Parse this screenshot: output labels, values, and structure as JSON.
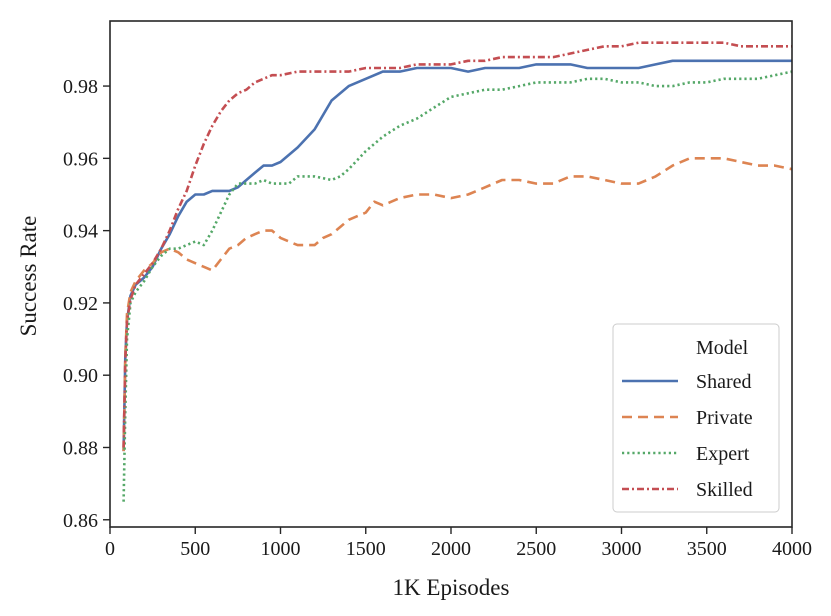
{
  "chart_data": {
    "type": "line",
    "title": "",
    "xlabel": "1K Episodes",
    "ylabel": "Success Rate",
    "xlim": [
      0,
      4000
    ],
    "ylim": [
      0.858,
      0.998
    ],
    "xticks": [
      0,
      500,
      1000,
      1500,
      2000,
      2500,
      3000,
      3500,
      4000
    ],
    "xtick_labels": [
      "0",
      "500",
      "1000",
      "1500",
      "2000",
      "2500",
      "3000",
      "3500",
      "4000"
    ],
    "yticks": [
      0.86,
      0.88,
      0.9,
      0.92,
      0.94,
      0.96,
      0.98
    ],
    "ytick_labels": [
      "0.86",
      "0.88",
      "0.90",
      "0.92",
      "0.94",
      "0.96",
      "0.98"
    ],
    "grid": false,
    "legend": {
      "title": "Model",
      "position": "lower-right"
    },
    "series": [
      {
        "name": "Shared",
        "color": "#4c72b0",
        "style": "solid",
        "points": [
          [
            80,
            0.879
          ],
          [
            90,
            0.905
          ],
          [
            100,
            0.915
          ],
          [
            120,
            0.922
          ],
          [
            150,
            0.925
          ],
          [
            200,
            0.927
          ],
          [
            250,
            0.93
          ],
          [
            300,
            0.935
          ],
          [
            350,
            0.939
          ],
          [
            400,
            0.944
          ],
          [
            450,
            0.948
          ],
          [
            500,
            0.95
          ],
          [
            550,
            0.95
          ],
          [
            600,
            0.951
          ],
          [
            650,
            0.951
          ],
          [
            700,
            0.951
          ],
          [
            750,
            0.952
          ],
          [
            800,
            0.954
          ],
          [
            850,
            0.956
          ],
          [
            900,
            0.958
          ],
          [
            950,
            0.958
          ],
          [
            1000,
            0.959
          ],
          [
            1100,
            0.963
          ],
          [
            1200,
            0.968
          ],
          [
            1300,
            0.976
          ],
          [
            1400,
            0.98
          ],
          [
            1500,
            0.982
          ],
          [
            1600,
            0.984
          ],
          [
            1700,
            0.984
          ],
          [
            1800,
            0.985
          ],
          [
            1900,
            0.985
          ],
          [
            2000,
            0.985
          ],
          [
            2100,
            0.984
          ],
          [
            2200,
            0.985
          ],
          [
            2300,
            0.985
          ],
          [
            2400,
            0.985
          ],
          [
            2500,
            0.986
          ],
          [
            2600,
            0.986
          ],
          [
            2700,
            0.986
          ],
          [
            2800,
            0.985
          ],
          [
            2900,
            0.985
          ],
          [
            3000,
            0.985
          ],
          [
            3100,
            0.985
          ],
          [
            3200,
            0.986
          ],
          [
            3300,
            0.987
          ],
          [
            3400,
            0.987
          ],
          [
            3500,
            0.987
          ],
          [
            3600,
            0.987
          ],
          [
            3700,
            0.987
          ],
          [
            3800,
            0.987
          ],
          [
            3900,
            0.987
          ],
          [
            4000,
            0.987
          ]
        ]
      },
      {
        "name": "Private",
        "color": "#dd8452",
        "style": "dashed",
        "points": [
          [
            80,
            0.879
          ],
          [
            90,
            0.905
          ],
          [
            100,
            0.917
          ],
          [
            120,
            0.923
          ],
          [
            150,
            0.926
          ],
          [
            200,
            0.929
          ],
          [
            250,
            0.931
          ],
          [
            300,
            0.934
          ],
          [
            350,
            0.935
          ],
          [
            400,
            0.934
          ],
          [
            450,
            0.932
          ],
          [
            500,
            0.931
          ],
          [
            550,
            0.93
          ],
          [
            600,
            0.929
          ],
          [
            650,
            0.932
          ],
          [
            700,
            0.935
          ],
          [
            750,
            0.936
          ],
          [
            800,
            0.938
          ],
          [
            850,
            0.939
          ],
          [
            900,
            0.94
          ],
          [
            950,
            0.94
          ],
          [
            1000,
            0.938
          ],
          [
            1050,
            0.937
          ],
          [
            1100,
            0.936
          ],
          [
            1150,
            0.936
          ],
          [
            1200,
            0.936
          ],
          [
            1250,
            0.938
          ],
          [
            1300,
            0.939
          ],
          [
            1350,
            0.941
          ],
          [
            1400,
            0.943
          ],
          [
            1450,
            0.944
          ],
          [
            1500,
            0.945
          ],
          [
            1550,
            0.948
          ],
          [
            1600,
            0.947
          ],
          [
            1650,
            0.948
          ],
          [
            1700,
            0.949
          ],
          [
            1800,
            0.95
          ],
          [
            1900,
            0.95
          ],
          [
            2000,
            0.949
          ],
          [
            2100,
            0.95
          ],
          [
            2200,
            0.952
          ],
          [
            2300,
            0.954
          ],
          [
            2400,
            0.954
          ],
          [
            2500,
            0.953
          ],
          [
            2600,
            0.953
          ],
          [
            2700,
            0.955
          ],
          [
            2800,
            0.955
          ],
          [
            2900,
            0.954
          ],
          [
            3000,
            0.953
          ],
          [
            3100,
            0.953
          ],
          [
            3200,
            0.955
          ],
          [
            3300,
            0.958
          ],
          [
            3400,
            0.96
          ],
          [
            3500,
            0.96
          ],
          [
            3600,
            0.96
          ],
          [
            3700,
            0.959
          ],
          [
            3800,
            0.958
          ],
          [
            3900,
            0.958
          ],
          [
            4000,
            0.957
          ]
        ]
      },
      {
        "name": "Expert",
        "color": "#55a868",
        "style": "dotted",
        "points": [
          [
            80,
            0.865
          ],
          [
            90,
            0.89
          ],
          [
            100,
            0.91
          ],
          [
            120,
            0.92
          ],
          [
            150,
            0.923
          ],
          [
            200,
            0.926
          ],
          [
            250,
            0.93
          ],
          [
            300,
            0.933
          ],
          [
            350,
            0.935
          ],
          [
            400,
            0.935
          ],
          [
            450,
            0.936
          ],
          [
            500,
            0.937
          ],
          [
            550,
            0.936
          ],
          [
            600,
            0.94
          ],
          [
            650,
            0.945
          ],
          [
            700,
            0.95
          ],
          [
            750,
            0.953
          ],
          [
            800,
            0.953
          ],
          [
            850,
            0.953
          ],
          [
            900,
            0.954
          ],
          [
            950,
            0.953
          ],
          [
            1000,
            0.953
          ],
          [
            1050,
            0.953
          ],
          [
            1100,
            0.955
          ],
          [
            1200,
            0.955
          ],
          [
            1300,
            0.954
          ],
          [
            1350,
            0.955
          ],
          [
            1400,
            0.957
          ],
          [
            1500,
            0.962
          ],
          [
            1600,
            0.966
          ],
          [
            1700,
            0.969
          ],
          [
            1800,
            0.971
          ],
          [
            1900,
            0.974
          ],
          [
            2000,
            0.977
          ],
          [
            2100,
            0.978
          ],
          [
            2200,
            0.979
          ],
          [
            2300,
            0.979
          ],
          [
            2400,
            0.98
          ],
          [
            2500,
            0.981
          ],
          [
            2600,
            0.981
          ],
          [
            2700,
            0.981
          ],
          [
            2800,
            0.982
          ],
          [
            2900,
            0.982
          ],
          [
            3000,
            0.981
          ],
          [
            3100,
            0.981
          ],
          [
            3200,
            0.98
          ],
          [
            3300,
            0.98
          ],
          [
            3400,
            0.981
          ],
          [
            3500,
            0.981
          ],
          [
            3600,
            0.982
          ],
          [
            3700,
            0.982
          ],
          [
            3800,
            0.982
          ],
          [
            3900,
            0.983
          ],
          [
            4000,
            0.984
          ]
        ]
      },
      {
        "name": "Skilled",
        "color": "#c44e52",
        "style": "dashdot",
        "points": [
          [
            80,
            0.88
          ],
          [
            90,
            0.904
          ],
          [
            100,
            0.915
          ],
          [
            120,
            0.921
          ],
          [
            150,
            0.925
          ],
          [
            200,
            0.928
          ],
          [
            250,
            0.931
          ],
          [
            300,
            0.935
          ],
          [
            350,
            0.94
          ],
          [
            400,
            0.946
          ],
          [
            450,
            0.951
          ],
          [
            500,
            0.958
          ],
          [
            550,
            0.964
          ],
          [
            600,
            0.969
          ],
          [
            650,
            0.973
          ],
          [
            700,
            0.976
          ],
          [
            750,
            0.978
          ],
          [
            800,
            0.979
          ],
          [
            850,
            0.981
          ],
          [
            900,
            0.982
          ],
          [
            950,
            0.983
          ],
          [
            1000,
            0.983
          ],
          [
            1100,
            0.984
          ],
          [
            1200,
            0.984
          ],
          [
            1300,
            0.984
          ],
          [
            1400,
            0.984
          ],
          [
            1500,
            0.985
          ],
          [
            1600,
            0.985
          ],
          [
            1700,
            0.985
          ],
          [
            1800,
            0.986
          ],
          [
            1900,
            0.986
          ],
          [
            2000,
            0.986
          ],
          [
            2100,
            0.987
          ],
          [
            2200,
            0.987
          ],
          [
            2300,
            0.988
          ],
          [
            2400,
            0.988
          ],
          [
            2500,
            0.988
          ],
          [
            2600,
            0.988
          ],
          [
            2700,
            0.989
          ],
          [
            2800,
            0.99
          ],
          [
            2900,
            0.991
          ],
          [
            3000,
            0.991
          ],
          [
            3100,
            0.992
          ],
          [
            3200,
            0.992
          ],
          [
            3300,
            0.992
          ],
          [
            3400,
            0.992
          ],
          [
            3500,
            0.992
          ],
          [
            3600,
            0.992
          ],
          [
            3700,
            0.991
          ],
          [
            3800,
            0.991
          ],
          [
            3900,
            0.991
          ],
          [
            4000,
            0.991
          ]
        ]
      }
    ]
  }
}
